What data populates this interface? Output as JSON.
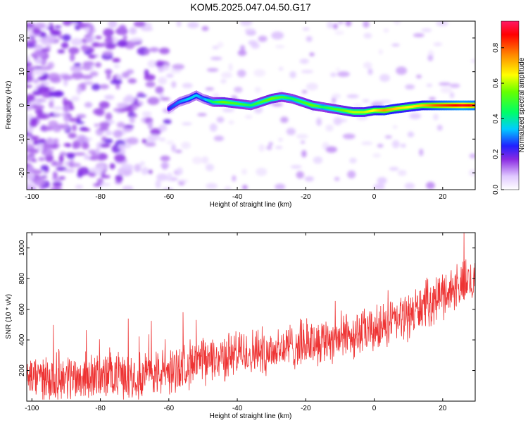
{
  "title": "KOM5.2025.047.04.50.G17",
  "chart_data": [
    {
      "type": "heatmap",
      "xlabel": "Height of straight line (km)",
      "ylabel": "Frequency (Hz)",
      "xlim": [
        -101.5,
        29.5
      ],
      "ylim": [
        -25,
        25
      ],
      "xticks": [
        -100,
        -80,
        -60,
        -40,
        -20,
        0,
        20
      ],
      "yticks": [
        -20,
        -10,
        0,
        10,
        20
      ],
      "ridge": {
        "x": [
          -60,
          -57,
          -54,
          -52,
          -50,
          -47,
          -44,
          -40,
          -36,
          -33,
          -30,
          -27,
          -24,
          -21,
          -18,
          -15,
          -12,
          -9,
          -6,
          -3,
          0,
          3,
          6,
          10,
          14,
          18,
          22,
          26,
          29.5
        ],
        "freq": [
          -1,
          1,
          2,
          3,
          2,
          1,
          1,
          0.5,
          0,
          1,
          2,
          2.5,
          2,
          1,
          0,
          -0.5,
          -1,
          -1.5,
          -2,
          -2,
          -1.5,
          -1.5,
          -1,
          -0.5,
          0,
          0,
          0,
          0,
          0
        ],
        "amplitude": [
          0.25,
          0.3,
          0.35,
          0.35,
          0.3,
          0.45,
          0.55,
          0.5,
          0.45,
          0.5,
          0.55,
          0.5,
          0.45,
          0.5,
          0.55,
          0.45,
          0.5,
          0.55,
          0.6,
          0.6,
          0.65,
          0.75,
          0.7,
          0.65,
          0.7,
          0.8,
          0.85,
          0.9,
          0.85
        ]
      },
      "noise_region": {
        "x_from": -101.5,
        "x_to": -60,
        "amplitude_max": 0.15
      },
      "colorbar": {
        "label": "Normalized spectral amplitude",
        "ticks": [
          0.0,
          0.2,
          0.4,
          0.6,
          0.8
        ],
        "tick_labels": [
          "0.0",
          "0.2",
          "0.4",
          "0.6",
          "0.8"
        ],
        "range": [
          0,
          0.95
        ]
      }
    },
    {
      "type": "line",
      "xlabel": "Height of straight line (km)",
      "ylabel": "SNR (10 * v/v)",
      "xlim": [
        -101.5,
        29.5
      ],
      "ylim": [
        0,
        1100
      ],
      "xticks": [
        -100,
        -80,
        -60,
        -40,
        -20,
        0,
        20
      ],
      "yticks": [
        200,
        400,
        600,
        800,
        1000
      ],
      "color": "#ee3333",
      "trend": {
        "x": [
          -101.5,
          -80,
          -70,
          -60,
          -55,
          -50,
          -40,
          -30,
          -20,
          -10,
          0,
          10,
          20,
          29.5
        ],
        "y": [
          150,
          160,
          170,
          190,
          240,
          260,
          310,
          330,
          380,
          420,
          460,
          560,
          700,
          800
        ]
      },
      "spread": 130
    }
  ]
}
